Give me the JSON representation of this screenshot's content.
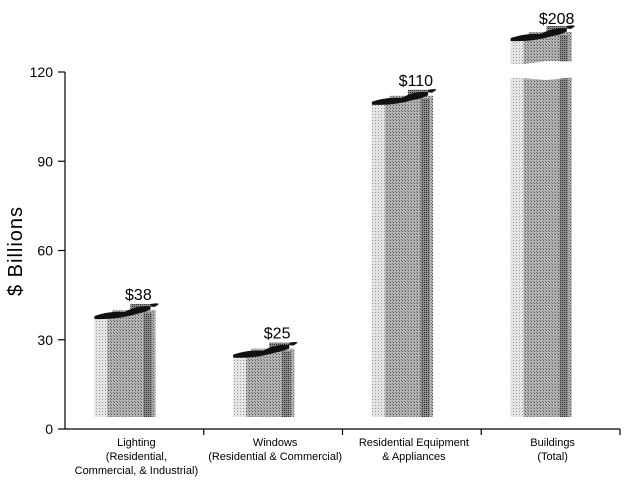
{
  "chart_data": {
    "type": "bar",
    "title": "",
    "xlabel": "",
    "ylabel": "$ Billions",
    "ylim": [
      0,
      120
    ],
    "yticks": [
      0,
      30,
      60,
      90,
      120
    ],
    "grid": false,
    "categories": [
      [
        "Lighting",
        "(Residential,",
        "Commercial, & Industrial)"
      ],
      [
        "Windows",
        "(Residential & Commercial)"
      ],
      [
        "Residential Equipment",
        "& Appliances"
      ],
      [
        "Buildings",
        "(Total)"
      ]
    ],
    "values": [
      38,
      25,
      110,
      208
    ],
    "value_labels": [
      "$38",
      "$25",
      "$110",
      "$208"
    ],
    "axis_break_on": [
      3
    ],
    "colors": {
      "light": "#dcdcdc",
      "mid": "#a8a8a8",
      "dark": "#6e6e6e",
      "top": "#111111"
    }
  }
}
